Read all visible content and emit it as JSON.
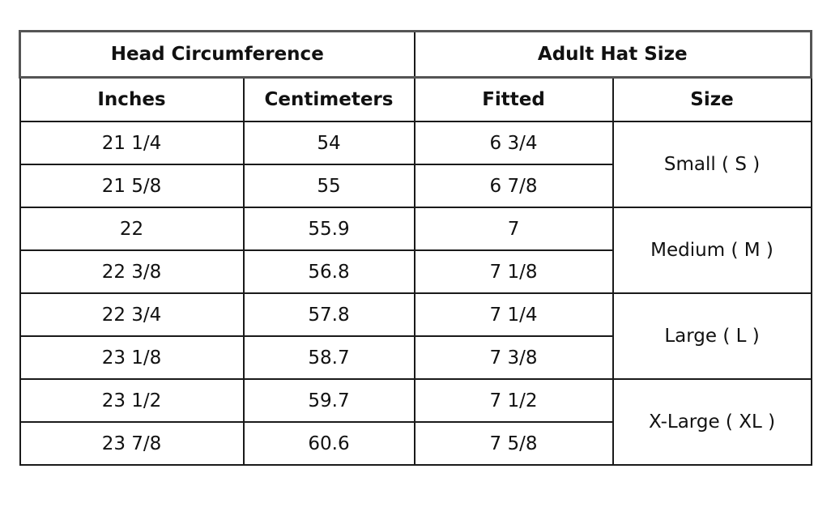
{
  "table": {
    "group_headers": [
      "Head Circumference",
      "Adult Hat Size"
    ],
    "column_headers": [
      "Inches",
      "Centimeters",
      "Fitted",
      "Size"
    ],
    "rows": [
      {
        "inches": "21 1/4",
        "cm": "54",
        "fitted": "6 3/4"
      },
      {
        "inches": "21 5/8",
        "cm": "55",
        "fitted": "6 7/8"
      },
      {
        "inches": "22",
        "cm": "55.9",
        "fitted": "7"
      },
      {
        "inches": "22 3/8",
        "cm": "56.8",
        "fitted": "7 1/8"
      },
      {
        "inches": "22 3/4",
        "cm": "57.8",
        "fitted": "7 1/4"
      },
      {
        "inches": "23 1/8",
        "cm": "58.7",
        "fitted": "7 3/8"
      },
      {
        "inches": "23 1/2",
        "cm": "59.7",
        "fitted": "7 1/2"
      },
      {
        "inches": "23 7/8",
        "cm": "60.6",
        "fitted": "7 5/8"
      }
    ],
    "sizes": [
      "Small ( S )",
      "Medium ( M )",
      "Large ( L )",
      "X-Large ( XL )"
    ]
  }
}
